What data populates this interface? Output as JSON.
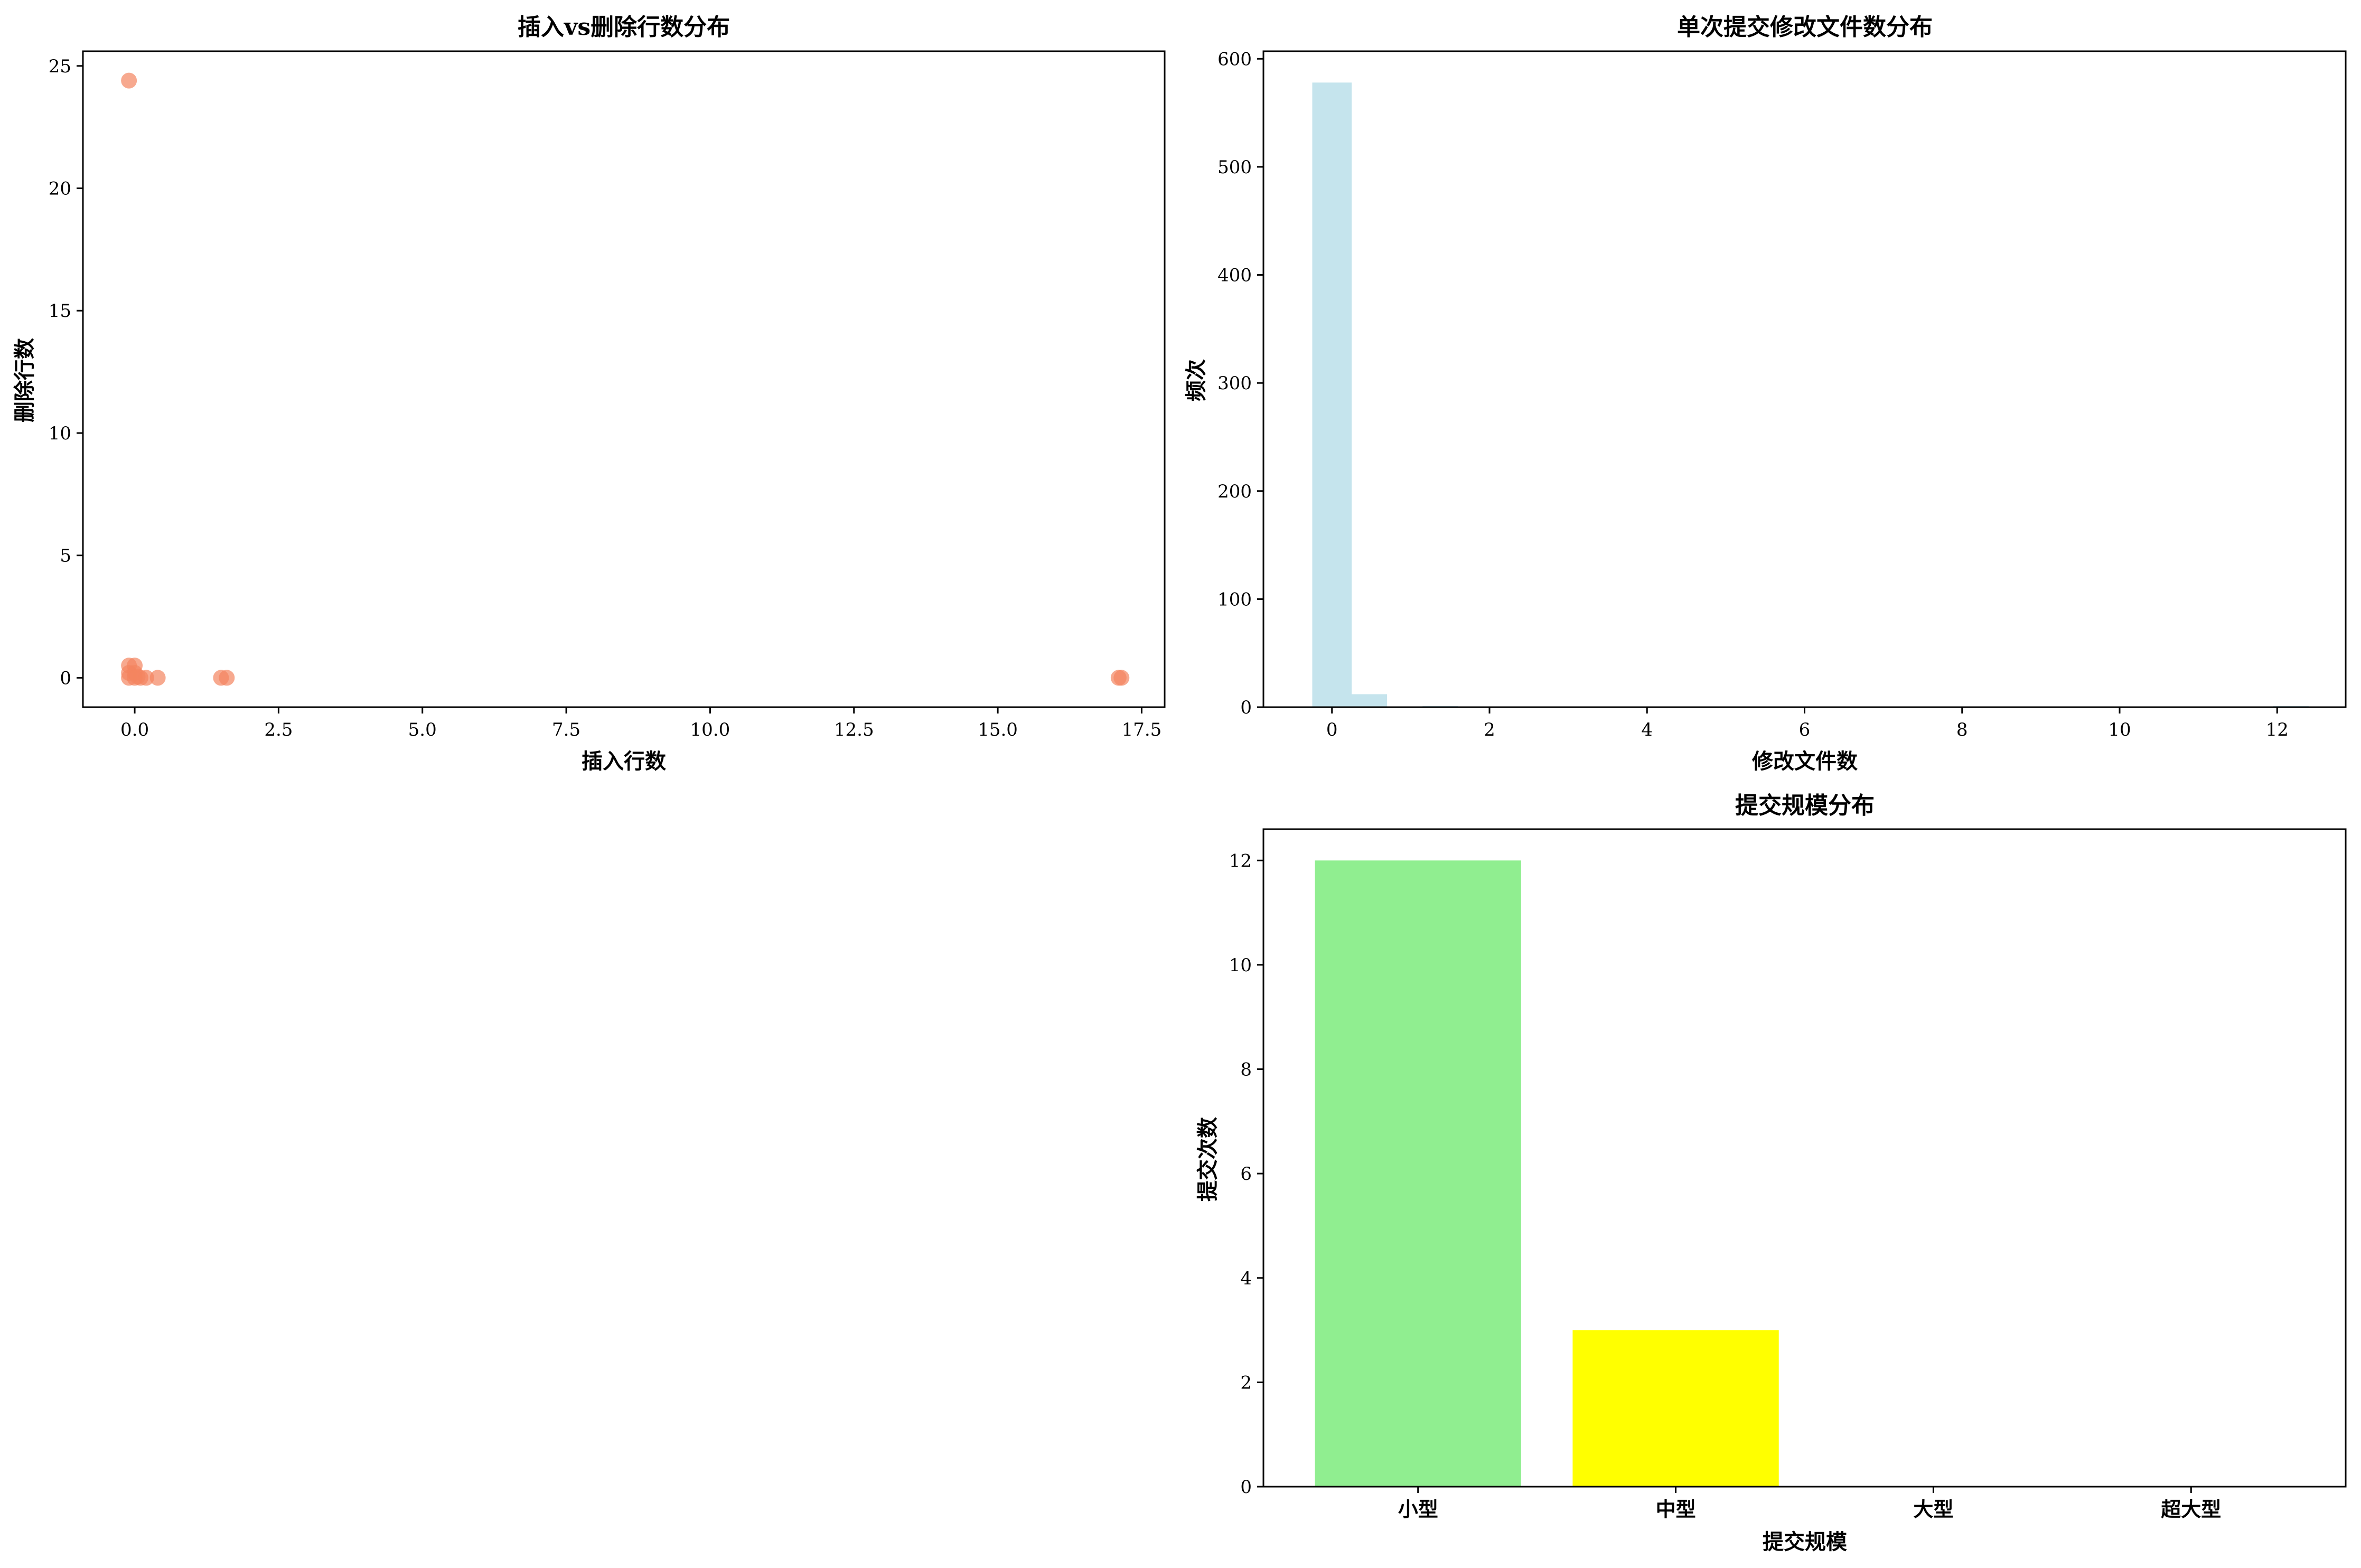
{
  "chart_data": [
    {
      "type": "scatter",
      "title": "插入vs删除行数分布",
      "xlabel": "插入行数",
      "ylabel": "删除行数",
      "xlim": [
        -0.9,
        17.9
      ],
      "ylim": [
        -1.2,
        25.6
      ],
      "xticks": [
        "0.0",
        "2.5",
        "5.0",
        "7.5",
        "10.0",
        "12.5",
        "15.0",
        "17.5"
      ],
      "xtick_values": [
        0,
        2.5,
        5,
        7.5,
        10,
        12.5,
        15,
        17.5
      ],
      "yticks": [
        "0",
        "5",
        "10",
        "15",
        "20",
        "25"
      ],
      "ytick_values": [
        0,
        5,
        10,
        15,
        20,
        25
      ],
      "grid": false,
      "color": "#f4845f",
      "points": [
        {
          "x": -0.1,
          "y": 24.4
        },
        {
          "x": -0.1,
          "y": 0.5
        },
        {
          "x": 0.0,
          "y": 0.5
        },
        {
          "x": -0.1,
          "y": 0.2
        },
        {
          "x": 0.0,
          "y": 0.2
        },
        {
          "x": 0.1,
          "y": 0.0
        },
        {
          "x": -0.1,
          "y": 0.0
        },
        {
          "x": 0.0,
          "y": 0.0
        },
        {
          "x": 0.05,
          "y": 0.05
        },
        {
          "x": 0.2,
          "y": 0.0
        },
        {
          "x": 0.4,
          "y": 0.0
        },
        {
          "x": 1.5,
          "y": 0.0
        },
        {
          "x": 1.6,
          "y": 0.0
        },
        {
          "x": 17.1,
          "y": 0.0
        },
        {
          "x": 17.15,
          "y": 0.0
        }
      ]
    },
    {
      "type": "bar",
      "subtype": "histogram",
      "title": "单次提交修改文件数分布",
      "xlabel": "修改文件数",
      "ylabel": "频次",
      "xlim": [
        -0.87,
        12.87
      ],
      "ylim": [
        0,
        607
      ],
      "xticks": [
        "0",
        "2",
        "4",
        "6",
        "8",
        "10",
        "12"
      ],
      "xtick_values": [
        0,
        2,
        4,
        6,
        8,
        10,
        12
      ],
      "yticks": [
        "0",
        "100",
        "200",
        "300",
        "400",
        "500",
        "600"
      ],
      "ytick_values": [
        0,
        100,
        200,
        300,
        400,
        500,
        600
      ],
      "grid": false,
      "color": "#add8e6",
      "bins": [
        {
          "x0": -0.25,
          "x1": 0.25,
          "value": 578
        },
        {
          "x0": 0.25,
          "x1": 0.7,
          "value": 12
        },
        {
          "x0": 0.7,
          "x1": 1.15,
          "value": 0
        },
        {
          "x0": 1.15,
          "x1": 1.6,
          "value": 1
        },
        {
          "x0": 11.95,
          "x1": 12.4,
          "value": 1
        }
      ]
    },
    {
      "type": "bar",
      "title": "提交规模分布",
      "xlabel": "提交规模",
      "ylabel": "提交次数",
      "ylim": [
        0,
        12.6
      ],
      "categories": [
        "小型",
        "中型",
        "大型",
        "超大型"
      ],
      "values": [
        12,
        3,
        0,
        0
      ],
      "colors": [
        "#90ee90",
        "#ffff00",
        "#ffa500",
        "#ff0000"
      ],
      "yticks": [
        "0",
        "2",
        "4",
        "6",
        "8",
        "10",
        "12"
      ],
      "ytick_values": [
        0,
        2,
        4,
        6,
        8,
        10,
        12
      ],
      "grid": false
    }
  ]
}
